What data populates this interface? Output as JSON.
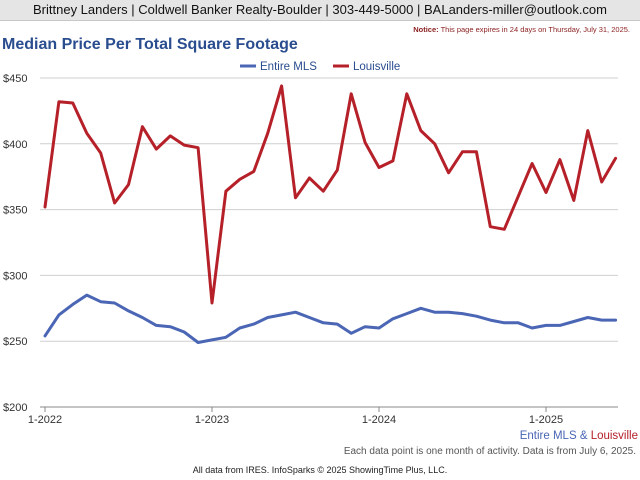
{
  "header": {
    "agent": "Brittney Landers",
    "company": "Coldwell Banker Realty-Boulder",
    "phone": "303-449-5000",
    "email": "BALanders-miller@outlook.com",
    "separator": " | "
  },
  "notice": {
    "label": "Notice:",
    "text": " This page expires in 24 days on Thursday, July 31, 2025."
  },
  "caption": "Each data point is one month of activity. Data is from July 6, 2025.",
  "footer": "All data from IRES. InfoSparks © 2025 ShowingTime Plus, LLC.",
  "series_caption": {
    "first": "Entire MLS",
    "amp": " & ",
    "second": "Louisville"
  },
  "colors": {
    "entire_mls": "#4a66b5",
    "louisville": "#b52029",
    "title": "#2a4d8f"
  },
  "chart_data": {
    "type": "line",
    "title": "Median Price Per Total Square Footage",
    "xlabel": "",
    "ylabel": "",
    "ylim": [
      200,
      450
    ],
    "y_ticks": [
      200,
      250,
      300,
      350,
      400,
      450
    ],
    "y_tick_labels": [
      "$200",
      "$250",
      "$300",
      "$350",
      "$400",
      "$450"
    ],
    "x_ticks": [
      "2022-01",
      "2023-01",
      "2024-01",
      "2025-01"
    ],
    "x_tick_labels": [
      "1-2022",
      "1-2023",
      "1-2024",
      "1-2025"
    ],
    "grid": true,
    "legend": "top-center",
    "x": [
      "2022-01",
      "2022-02",
      "2022-03",
      "2022-04",
      "2022-05",
      "2022-06",
      "2022-07",
      "2022-08",
      "2022-09",
      "2022-10",
      "2022-11",
      "2022-12",
      "2023-01",
      "2023-02",
      "2023-03",
      "2023-04",
      "2023-05",
      "2023-06",
      "2023-07",
      "2023-08",
      "2023-09",
      "2023-10",
      "2023-11",
      "2023-12",
      "2024-01",
      "2024-02",
      "2024-03",
      "2024-04",
      "2024-05",
      "2024-06",
      "2024-07",
      "2024-08",
      "2024-09",
      "2024-10",
      "2024-11",
      "2024-12",
      "2025-01",
      "2025-02",
      "2025-03",
      "2025-04",
      "2025-05",
      "2025-06"
    ],
    "series": [
      {
        "name": "Entire MLS",
        "values": [
          254,
          270,
          278,
          285,
          280,
          279,
          273,
          268,
          262,
          261,
          257,
          249,
          251,
          253,
          260,
          263,
          268,
          270,
          272,
          268,
          264,
          263,
          256,
          261,
          260,
          267,
          271,
          275,
          272,
          272,
          271,
          269,
          266,
          264,
          264,
          260,
          262,
          262,
          265,
          268,
          266,
          266
        ]
      },
      {
        "name": "Louisville",
        "values": [
          352,
          432,
          431,
          408,
          393,
          355,
          369,
          413,
          396,
          406,
          399,
          397,
          279,
          364,
          373,
          379,
          408,
          444,
          359,
          374,
          364,
          380,
          438,
          401,
          382,
          387,
          438,
          410,
          400,
          378,
          394,
          394,
          337,
          335,
          360,
          385,
          363,
          388,
          357,
          410,
          371,
          389
        ]
      }
    ]
  }
}
